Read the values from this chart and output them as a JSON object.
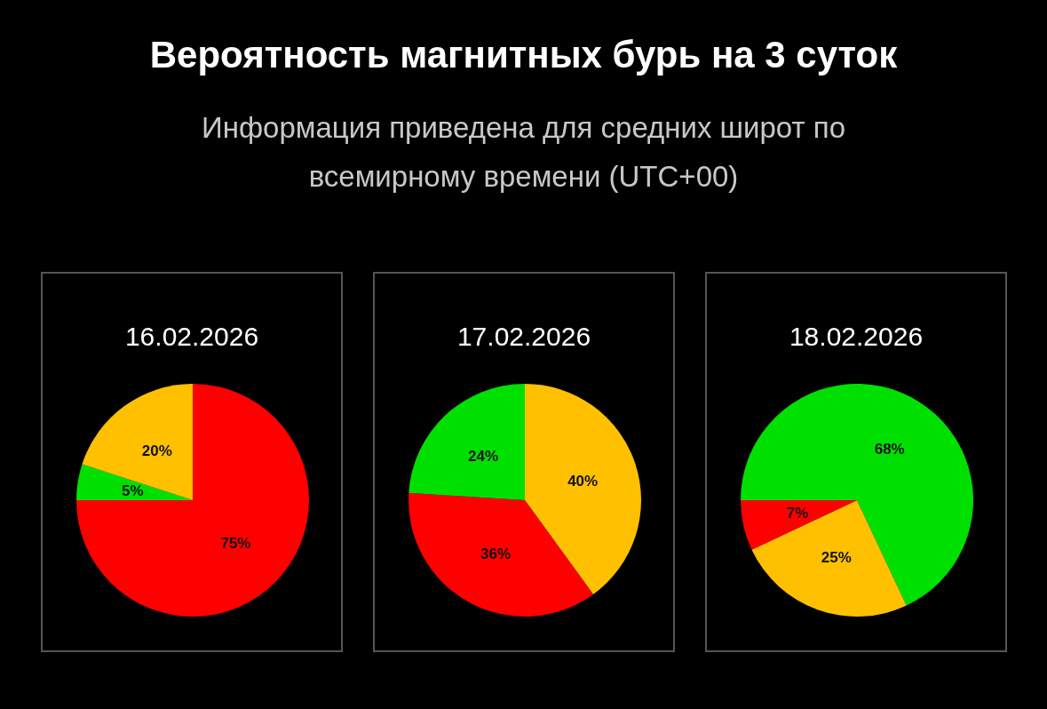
{
  "chart_data": [
    {
      "type": "other",
      "title": "Вероятность магнитных бурь на 3 суток",
      "subtitle": "Информация приведена для средних широт по всемирному времени (UTC+00)"
    },
    {
      "type": "pie",
      "title": "16.02.2026",
      "categories": [
        null,
        null,
        null
      ],
      "values": [
        75,
        5,
        20
      ],
      "colors": [
        "#ff0000",
        "#00e000",
        "#ffc000"
      ],
      "value_labels": [
        "75%",
        "5%",
        "20%"
      ]
    },
    {
      "type": "pie",
      "title": "17.02.2026",
      "categories": [
        null,
        null,
        null
      ],
      "values": [
        40,
        36,
        24
      ],
      "colors": [
        "#ffc000",
        "#ff0000",
        "#00e000"
      ],
      "value_labels": [
        "40%",
        "36%",
        "24%"
      ]
    },
    {
      "type": "pie",
      "title": "18.02.2026",
      "categories": [
        null,
        null,
        null
      ],
      "values": [
        68,
        25,
        7
      ],
      "colors": [
        "#00e000",
        "#ffc000",
        "#ff0000"
      ],
      "value_labels": [
        "68%",
        "25%",
        "7%"
      ]
    }
  ]
}
